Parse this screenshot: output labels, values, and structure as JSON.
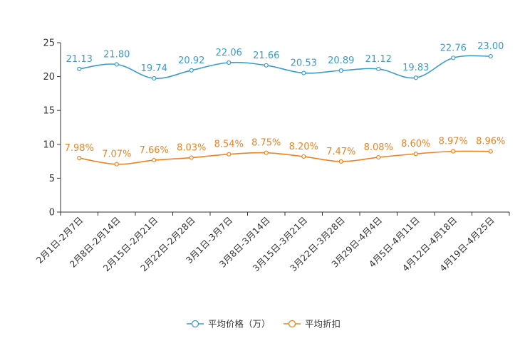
{
  "chart_data": {
    "type": "line",
    "title": "",
    "xlabel": "",
    "ylabel": "",
    "ylim": [
      0,
      25
    ],
    "yticks": [
      "0",
      "5",
      "10",
      "15",
      "20",
      "25"
    ],
    "categories": [
      "2月1日-2月7日",
      "2月8日-2月14日",
      "2月15日-2月21日",
      "2月22日-2月28日",
      "3月1日-3月7日",
      "3月8日-3月14日",
      "3月15日-3月21日",
      "3月22日-3月28日",
      "3月29日-4月4日",
      "4月5日-4月11日",
      "4月12日-4月18日",
      "4月19日-4月25日"
    ],
    "series": [
      {
        "name": "平均价格（万）",
        "color": "#3a9bd0",
        "values": [
          21.13,
          21.8,
          19.74,
          20.92,
          22.06,
          21.66,
          20.53,
          20.89,
          21.12,
          19.83,
          22.76,
          23.0
        ],
        "labels": [
          "21.13",
          "21.80",
          "19.74",
          "20.92",
          "22.06",
          "21.66",
          "20.53",
          "20.89",
          "21.12",
          "19.83",
          "22.76",
          "23.00"
        ]
      },
      {
        "name": "平均折扣",
        "color": "#f0821e",
        "values": [
          7.98,
          7.07,
          7.66,
          8.03,
          8.54,
          8.75,
          8.2,
          7.47,
          8.08,
          8.6,
          8.97,
          8.96
        ],
        "labels": [
          "7.98%",
          "7.07%",
          "7.66%",
          "8.03%",
          "8.54%",
          "8.75%",
          "8.20%",
          "7.47%",
          "8.08%",
          "8.60%",
          "8.97%",
          "8.96%"
        ]
      }
    ],
    "legend": "bottom-center",
    "grid": false
  }
}
